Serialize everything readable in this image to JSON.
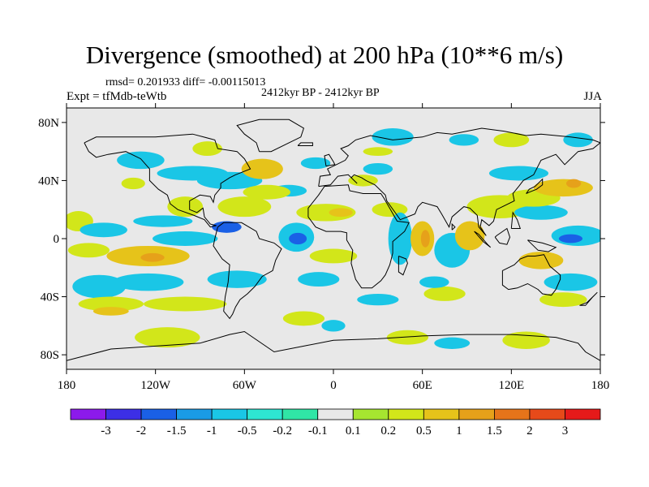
{
  "chart_data": {
    "type": "heatmap",
    "title": "Divergence (smoothed) at 200 hPa (10**6 m/s)",
    "stats_text": "rmsd= 0.201933 diff= -0.00115013",
    "experiment": "Expt = tfMdb-teWtb",
    "period": "2412kyr BP - 2412kyr BP",
    "season": "JJA",
    "x_range": [
      -180,
      180
    ],
    "y_range": [
      -90,
      90
    ],
    "x_ticks": [
      {
        "value": -180,
        "label": "180"
      },
      {
        "value": -120,
        "label": "120W"
      },
      {
        "value": -60,
        "label": "60W"
      },
      {
        "value": 0,
        "label": "0"
      },
      {
        "value": 60,
        "label": "60E"
      },
      {
        "value": 120,
        "label": "120E"
      },
      {
        "value": 180,
        "label": "180"
      }
    ],
    "y_ticks": [
      {
        "value": 80,
        "label": "80N"
      },
      {
        "value": 40,
        "label": "40N"
      },
      {
        "value": 0,
        "label": "0"
      },
      {
        "value": -40,
        "label": "40S"
      },
      {
        "value": -80,
        "label": "80S"
      }
    ],
    "colorbar": {
      "colors": [
        "#8c1aeb",
        "#3c2fe6",
        "#1a60e6",
        "#1a9be6",
        "#1ac6e6",
        "#2ee6d2",
        "#30e6a6",
        "#e8e8e8",
        "#a6e630",
        "#d2e61a",
        "#e6c31a",
        "#e6a11a",
        "#e6741a",
        "#e64a1a",
        "#e61a1a"
      ],
      "labels": [
        "-3",
        "-2",
        "-1.5",
        "-1",
        "-0.5",
        "-0.2",
        "-0.1",
        "0.1",
        "0.2",
        "0.5",
        "1",
        "1.5",
        "2",
        "3"
      ]
    },
    "features": [
      {
        "lon": -172,
        "lat": 12,
        "rx": 10,
        "ry": 7,
        "level": 9
      },
      {
        "lon": -155,
        "lat": 6,
        "rx": 16,
        "ry": 5,
        "level": 4
      },
      {
        "lon": -165,
        "lat": -8,
        "rx": 14,
        "ry": 5,
        "level": 9
      },
      {
        "lon": -125,
        "lat": -12,
        "rx": 28,
        "ry": 7,
        "level": 10
      },
      {
        "lon": -122,
        "lat": -13,
        "rx": 8,
        "ry": 3,
        "level": 11
      },
      {
        "lon": -100,
        "lat": 22,
        "rx": 12,
        "ry": 7,
        "level": 9
      },
      {
        "lon": -115,
        "lat": 12,
        "rx": 20,
        "ry": 4,
        "level": 4
      },
      {
        "lon": -100,
        "lat": 0,
        "rx": 22,
        "ry": 5,
        "level": 4
      },
      {
        "lon": -72,
        "lat": 8,
        "rx": 10,
        "ry": 4,
        "level": 2
      },
      {
        "lon": -125,
        "lat": -30,
        "rx": 24,
        "ry": 6,
        "level": 4
      },
      {
        "lon": -158,
        "lat": -33,
        "rx": 18,
        "ry": 8,
        "level": 4
      },
      {
        "lon": -150,
        "lat": -45,
        "rx": 22,
        "ry": 5,
        "level": 9
      },
      {
        "lon": -150,
        "lat": -50,
        "rx": 12,
        "ry": 3,
        "level": 10
      },
      {
        "lon": -65,
        "lat": -28,
        "rx": 20,
        "ry": 6,
        "level": 4
      },
      {
        "lon": -100,
        "lat": -45,
        "rx": 28,
        "ry": 5,
        "level": 9
      },
      {
        "lon": -112,
        "lat": -68,
        "rx": 22,
        "ry": 7,
        "level": 9
      },
      {
        "lon": -95,
        "lat": 45,
        "rx": 24,
        "ry": 5,
        "level": 4
      },
      {
        "lon": -130,
        "lat": 54,
        "rx": 16,
        "ry": 6,
        "level": 4
      },
      {
        "lon": -135,
        "lat": 38,
        "rx": 8,
        "ry": 4,
        "level": 9
      },
      {
        "lon": -85,
        "lat": 62,
        "rx": 10,
        "ry": 5,
        "level": 9
      },
      {
        "lon": -70,
        "lat": 40,
        "rx": 22,
        "ry": 6,
        "level": 4
      },
      {
        "lon": -48,
        "lat": 48,
        "rx": 14,
        "ry": 7,
        "level": 10
      },
      {
        "lon": -60,
        "lat": 22,
        "rx": 18,
        "ry": 7,
        "level": 9
      },
      {
        "lon": -30,
        "lat": 33,
        "rx": 12,
        "ry": 4,
        "level": 4
      },
      {
        "lon": -12,
        "lat": 52,
        "rx": 10,
        "ry": 4,
        "level": 4
      },
      {
        "lon": -45,
        "lat": 32,
        "rx": 16,
        "ry": 5,
        "level": 9
      },
      {
        "lon": -25,
        "lat": 1,
        "rx": 12,
        "ry": 10,
        "level": 4
      },
      {
        "lon": -24,
        "lat": 0,
        "rx": 6,
        "ry": 4,
        "level": 2
      },
      {
        "lon": -5,
        "lat": 18,
        "rx": 20,
        "ry": 6,
        "level": 9
      },
      {
        "lon": 5,
        "lat": 18,
        "rx": 8,
        "ry": 3,
        "level": 10
      },
      {
        "lon": 0,
        "lat": -12,
        "rx": 16,
        "ry": 5,
        "level": 9
      },
      {
        "lon": -10,
        "lat": -28,
        "rx": 14,
        "ry": 5,
        "level": 4
      },
      {
        "lon": 38,
        "lat": 20,
        "rx": 12,
        "ry": 5,
        "level": 9
      },
      {
        "lon": 30,
        "lat": 48,
        "rx": 10,
        "ry": 4,
        "level": 4
      },
      {
        "lon": 20,
        "lat": 40,
        "rx": 10,
        "ry": 4,
        "level": 9
      },
      {
        "lon": 45,
        "lat": 0,
        "rx": 8,
        "ry": 18,
        "level": 4
      },
      {
        "lon": 60,
        "lat": 0,
        "rx": 8,
        "ry": 12,
        "level": 10
      },
      {
        "lon": 62,
        "lat": 0,
        "rx": 3,
        "ry": 6,
        "level": 11
      },
      {
        "lon": 80,
        "lat": -8,
        "rx": 12,
        "ry": 12,
        "level": 4
      },
      {
        "lon": 92,
        "lat": 2,
        "rx": 10,
        "ry": 10,
        "level": 10
      },
      {
        "lon": 112,
        "lat": 22,
        "rx": 22,
        "ry": 8,
        "level": 9
      },
      {
        "lon": 140,
        "lat": 18,
        "rx": 18,
        "ry": 5,
        "level": 4
      },
      {
        "lon": 135,
        "lat": 28,
        "rx": 18,
        "ry": 6,
        "level": 9
      },
      {
        "lon": 125,
        "lat": 45,
        "rx": 20,
        "ry": 5,
        "level": 4
      },
      {
        "lon": 155,
        "lat": 35,
        "rx": 20,
        "ry": 6,
        "level": 10
      },
      {
        "lon": 162,
        "lat": 38,
        "rx": 5,
        "ry": 3,
        "level": 11
      },
      {
        "lon": 165,
        "lat": 2,
        "rx": 18,
        "ry": 7,
        "level": 4
      },
      {
        "lon": 160,
        "lat": 0,
        "rx": 8,
        "ry": 3,
        "level": 2
      },
      {
        "lon": 140,
        "lat": -15,
        "rx": 15,
        "ry": 6,
        "level": 10
      },
      {
        "lon": 160,
        "lat": -30,
        "rx": 18,
        "ry": 6,
        "level": 4
      },
      {
        "lon": 155,
        "lat": -42,
        "rx": 16,
        "ry": 5,
        "level": 9
      },
      {
        "lon": 75,
        "lat": -38,
        "rx": 14,
        "ry": 5,
        "level": 9
      },
      {
        "lon": 68,
        "lat": -30,
        "rx": 10,
        "ry": 4,
        "level": 4
      },
      {
        "lon": 30,
        "lat": -42,
        "rx": 14,
        "ry": 4,
        "level": 4
      },
      {
        "lon": 120,
        "lat": 68,
        "rx": 12,
        "ry": 5,
        "level": 9
      },
      {
        "lon": 88,
        "lat": 68,
        "rx": 10,
        "ry": 4,
        "level": 4
      },
      {
        "lon": 165,
        "lat": 68,
        "rx": 10,
        "ry": 5,
        "level": 4
      },
      {
        "lon": 40,
        "lat": 70,
        "rx": 14,
        "ry": 6,
        "level": 4
      },
      {
        "lon": 30,
        "lat": 60,
        "rx": 10,
        "ry": 3,
        "level": 9
      },
      {
        "lon": 50,
        "lat": -68,
        "rx": 14,
        "ry": 5,
        "level": 9
      },
      {
        "lon": 80,
        "lat": -72,
        "rx": 12,
        "ry": 4,
        "level": 4
      },
      {
        "lon": 130,
        "lat": -70,
        "rx": 16,
        "ry": 6,
        "level": 9
      },
      {
        "lon": -20,
        "lat": -55,
        "rx": 14,
        "ry": 5,
        "level": 9
      },
      {
        "lon": 0,
        "lat": -60,
        "rx": 8,
        "ry": 4,
        "level": 4
      }
    ]
  }
}
